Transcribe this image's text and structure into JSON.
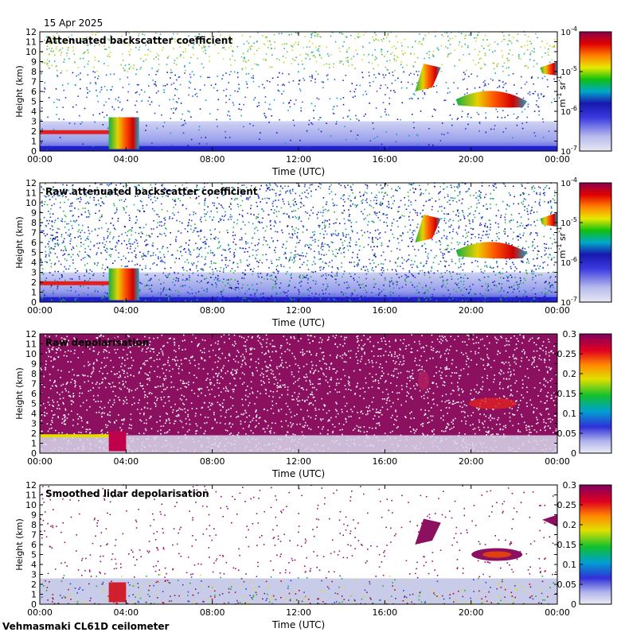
{
  "date": "15 Apr 2025",
  "footer": "Vehmasmaki CL61D ceilometer",
  "colors": {
    "background": "#ffffff",
    "axes": "#000000",
    "backscatter_base": "#3340d8",
    "depol_base": "#8b1060"
  },
  "chart_data": [
    {
      "type": "heatmap",
      "title": "Attenuated backscatter coefficient",
      "xlabel": "Time (UTC)",
      "ylabel": "Height (km)",
      "xlim": [
        0,
        24
      ],
      "xticks": [
        "00:00",
        "04:00",
        "08:00",
        "12:00",
        "16:00",
        "20:00",
        "00:00"
      ],
      "ylim": [
        0,
        12
      ],
      "yticks": [
        "0",
        "1",
        "2",
        "3",
        "4",
        "5",
        "6",
        "7",
        "8",
        "9",
        "10",
        "11",
        "12"
      ],
      "colorbar": {
        "scale": "log",
        "ticks": [
          {
            "base": "10",
            "exp": "-4"
          },
          {
            "base": "10",
            "exp": "-5"
          },
          {
            "base": "10",
            "exp": "-6"
          },
          {
            "base": "10",
            "exp": "-7"
          }
        ],
        "unit": {
          "a": "m",
          "a_exp": "-1",
          "b": "sr",
          "b_exp": "-1"
        }
      },
      "features": [
        {
          "name": "low cloud layer",
          "t_start": 0,
          "t_end": 4.5,
          "height_km": 1.9
        },
        {
          "name": "thick cloud",
          "t_start": 3.5,
          "t_end": 4.5,
          "height_km": [
            0.2,
            3.5
          ]
        },
        {
          "name": "elevated cloud",
          "t_start": 17.5,
          "t_end": 18.5,
          "height_km": [
            5.8,
            8.8
          ]
        },
        {
          "name": "mid cloud",
          "t_start": 19.5,
          "t_end": 22.5,
          "height_km": [
            4.5,
            6.5
          ]
        },
        {
          "name": "high cloud",
          "t_start": 23.2,
          "t_end": 24,
          "height_km": [
            7.5,
            9
          ]
        }
      ]
    },
    {
      "type": "heatmap",
      "title": "Raw attenuated backscatter coefficient",
      "xlabel": "Time (UTC)",
      "ylabel": "Height (km)",
      "xlim": [
        0,
        24
      ],
      "xticks": [
        "00:00",
        "04:00",
        "08:00",
        "12:00",
        "16:00",
        "20:00",
        "00:00"
      ],
      "ylim": [
        0,
        12
      ],
      "yticks": [
        "0",
        "1",
        "2",
        "3",
        "4",
        "5",
        "6",
        "7",
        "8",
        "9",
        "10",
        "11",
        "12"
      ],
      "colorbar": {
        "scale": "log",
        "ticks": [
          {
            "base": "10",
            "exp": "-4"
          },
          {
            "base": "10",
            "exp": "-5"
          },
          {
            "base": "10",
            "exp": "-6"
          },
          {
            "base": "10",
            "exp": "-7"
          }
        ],
        "unit": {
          "a": "m",
          "a_exp": "-1",
          "b": "sr",
          "b_exp": "-1"
        }
      }
    },
    {
      "type": "heatmap",
      "title": "Raw depolarisation",
      "xlabel": "Time (UTC)",
      "ylabel": "Height (km)",
      "xlim": [
        0,
        24
      ],
      "xticks": [
        "00:00",
        "04:00",
        "08:00",
        "12:00",
        "16:00",
        "20:00",
        "00:00"
      ],
      "ylim": [
        0,
        12
      ],
      "yticks": [
        "0",
        "1",
        "2",
        "3",
        "4",
        "5",
        "6",
        "7",
        "8",
        "9",
        "10",
        "11",
        "12"
      ],
      "colorbar": {
        "scale": "linear",
        "range": [
          0,
          0.3
        ],
        "ticks": [
          "0.3",
          "0.25",
          "0.2",
          "0.15",
          "0.1",
          "0.05",
          "0"
        ]
      }
    },
    {
      "type": "heatmap",
      "title": "Smoothed lidar depolarisation",
      "xlabel": "Time (UTC)",
      "ylabel": "Height (km)",
      "xlim": [
        0,
        24
      ],
      "xticks": [
        "00:00",
        "04:00",
        "08:00",
        "12:00",
        "16:00",
        "20:00",
        "00:00"
      ],
      "ylim": [
        0,
        12
      ],
      "yticks": [
        "0",
        "1",
        "2",
        "3",
        "4",
        "5",
        "6",
        "7",
        "8",
        "9",
        "10",
        "11",
        "12"
      ],
      "colorbar": {
        "scale": "linear",
        "range": [
          0,
          0.3
        ],
        "ticks": [
          "0.3",
          "0.25",
          "0.2",
          "0.15",
          "0.1",
          "0.05",
          "0"
        ]
      }
    }
  ]
}
